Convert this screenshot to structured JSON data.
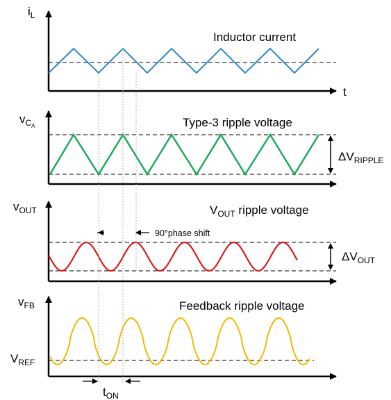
{
  "colors": {
    "inductor": "#2E86C8",
    "type3": "#1EAA5A",
    "vout": "#D81B1B",
    "feedback": "#F2B800",
    "axis": "#000000",
    "guide": "#9A9A9A"
  },
  "time_axis_label": "t",
  "panels": {
    "inductor": {
      "axis_main": "i",
      "axis_sub": "L",
      "title": "Inductor current"
    },
    "type3": {
      "axis_main": "v",
      "axis_sub": "C",
      "axis_subsub": "A",
      "title": "Type-3 ripple voltage",
      "delta_symbol": "ΔV",
      "delta_sub": "RIPPLE"
    },
    "vout": {
      "axis_main": "v",
      "axis_sub": "OUT",
      "title_main": "V",
      "title_sub": "OUT",
      "title_rest": " ripple voltage",
      "phase_label": "90°phase shift",
      "delta_symbol": "ΔV",
      "delta_sub": "OUT"
    },
    "feedback": {
      "axis_main": "v",
      "axis_sub": "FB",
      "title": "Feedback ripple voltage",
      "ref_main": "V",
      "ref_sub": "REF",
      "ton_main": "t",
      "ton_sub": "ON"
    }
  }
}
